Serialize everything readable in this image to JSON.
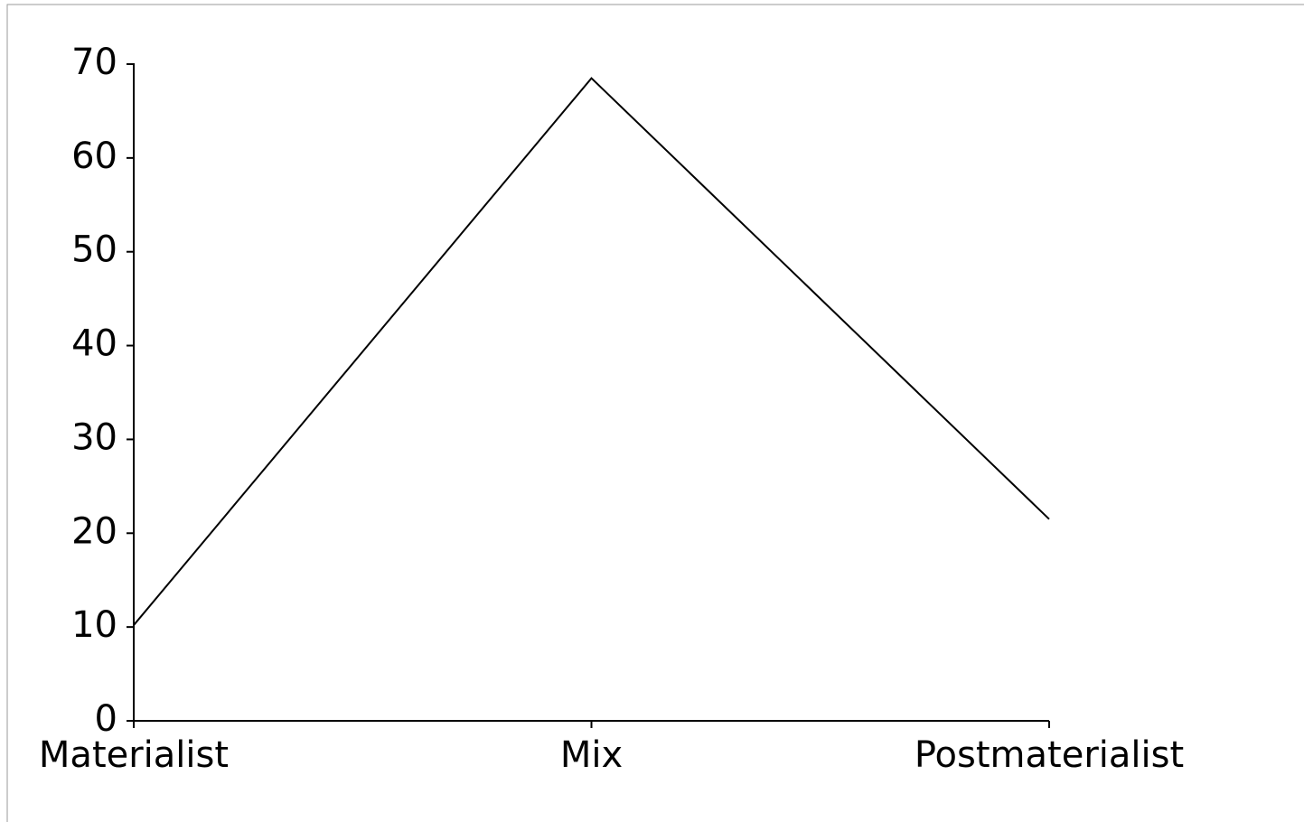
{
  "chart_data": {
    "type": "line",
    "categories": [
      "Materialist",
      "Mix",
      "Postmaterialist"
    ],
    "values": [
      10.2,
      68.5,
      21.5
    ],
    "color": "#000000",
    "ylim": [
      0,
      70
    ],
    "yticks": [
      0,
      10,
      20,
      30,
      40,
      50,
      60,
      70
    ],
    "grid": false
  }
}
